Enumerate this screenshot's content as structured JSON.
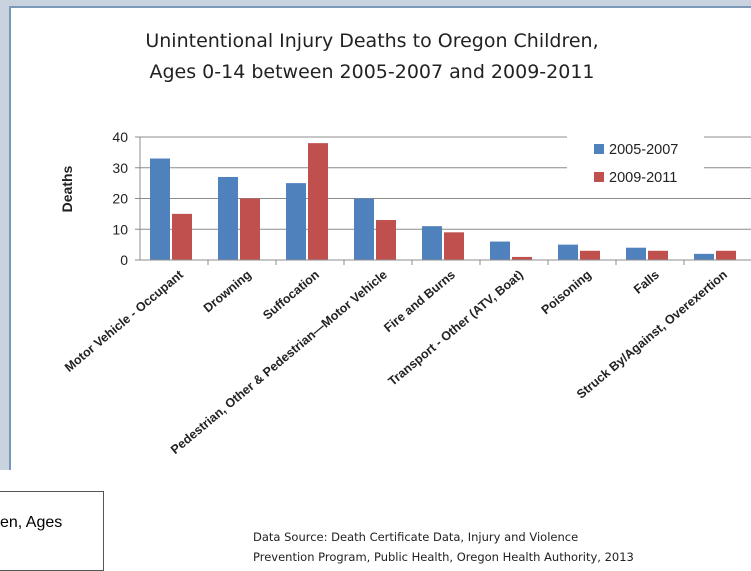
{
  "chart_data": {
    "type": "bar",
    "title_lines": [
      "Unintentional Injury Deaths to Oregon Children,",
      "Ages 0-14 between 2005-2007 and 2009-2011"
    ],
    "ylabel": "Deaths",
    "xlabel": "",
    "ylim": [
      0,
      40
    ],
    "yticks": [
      0,
      10,
      20,
      30,
      40
    ],
    "categories": [
      "Motor Vehicle - Occupant",
      "Drowning",
      "Suffocation",
      "Pedestrian, Other & Pedestrian—Motor Vehicle",
      "Fire and Burns",
      "Transport - Other (ATV, Boat)",
      "Poisoning",
      "Falls",
      "Struck By/Against, Overexertion"
    ],
    "series": [
      {
        "name": "2005-2007",
        "color": "#4f81bd",
        "values": [
          33,
          27,
          25,
          20,
          11,
          6,
          5,
          4,
          2
        ]
      },
      {
        "name": "2009-2011",
        "color": "#c0504d",
        "values": [
          15,
          20,
          38,
          13,
          9,
          1,
          3,
          3,
          3
        ]
      }
    ],
    "grid": true,
    "legend_position": "top-right"
  },
  "source_lines": [
    "Data Source: Death Certificate Data, Injury and Violence",
    "Prevention Program, Public Health, Oregon Health Authority, 2013"
  ],
  "fragment_text": "en, Ages",
  "colors": {
    "border": "#c9d3e0",
    "border_inner": "#7d97b8"
  }
}
